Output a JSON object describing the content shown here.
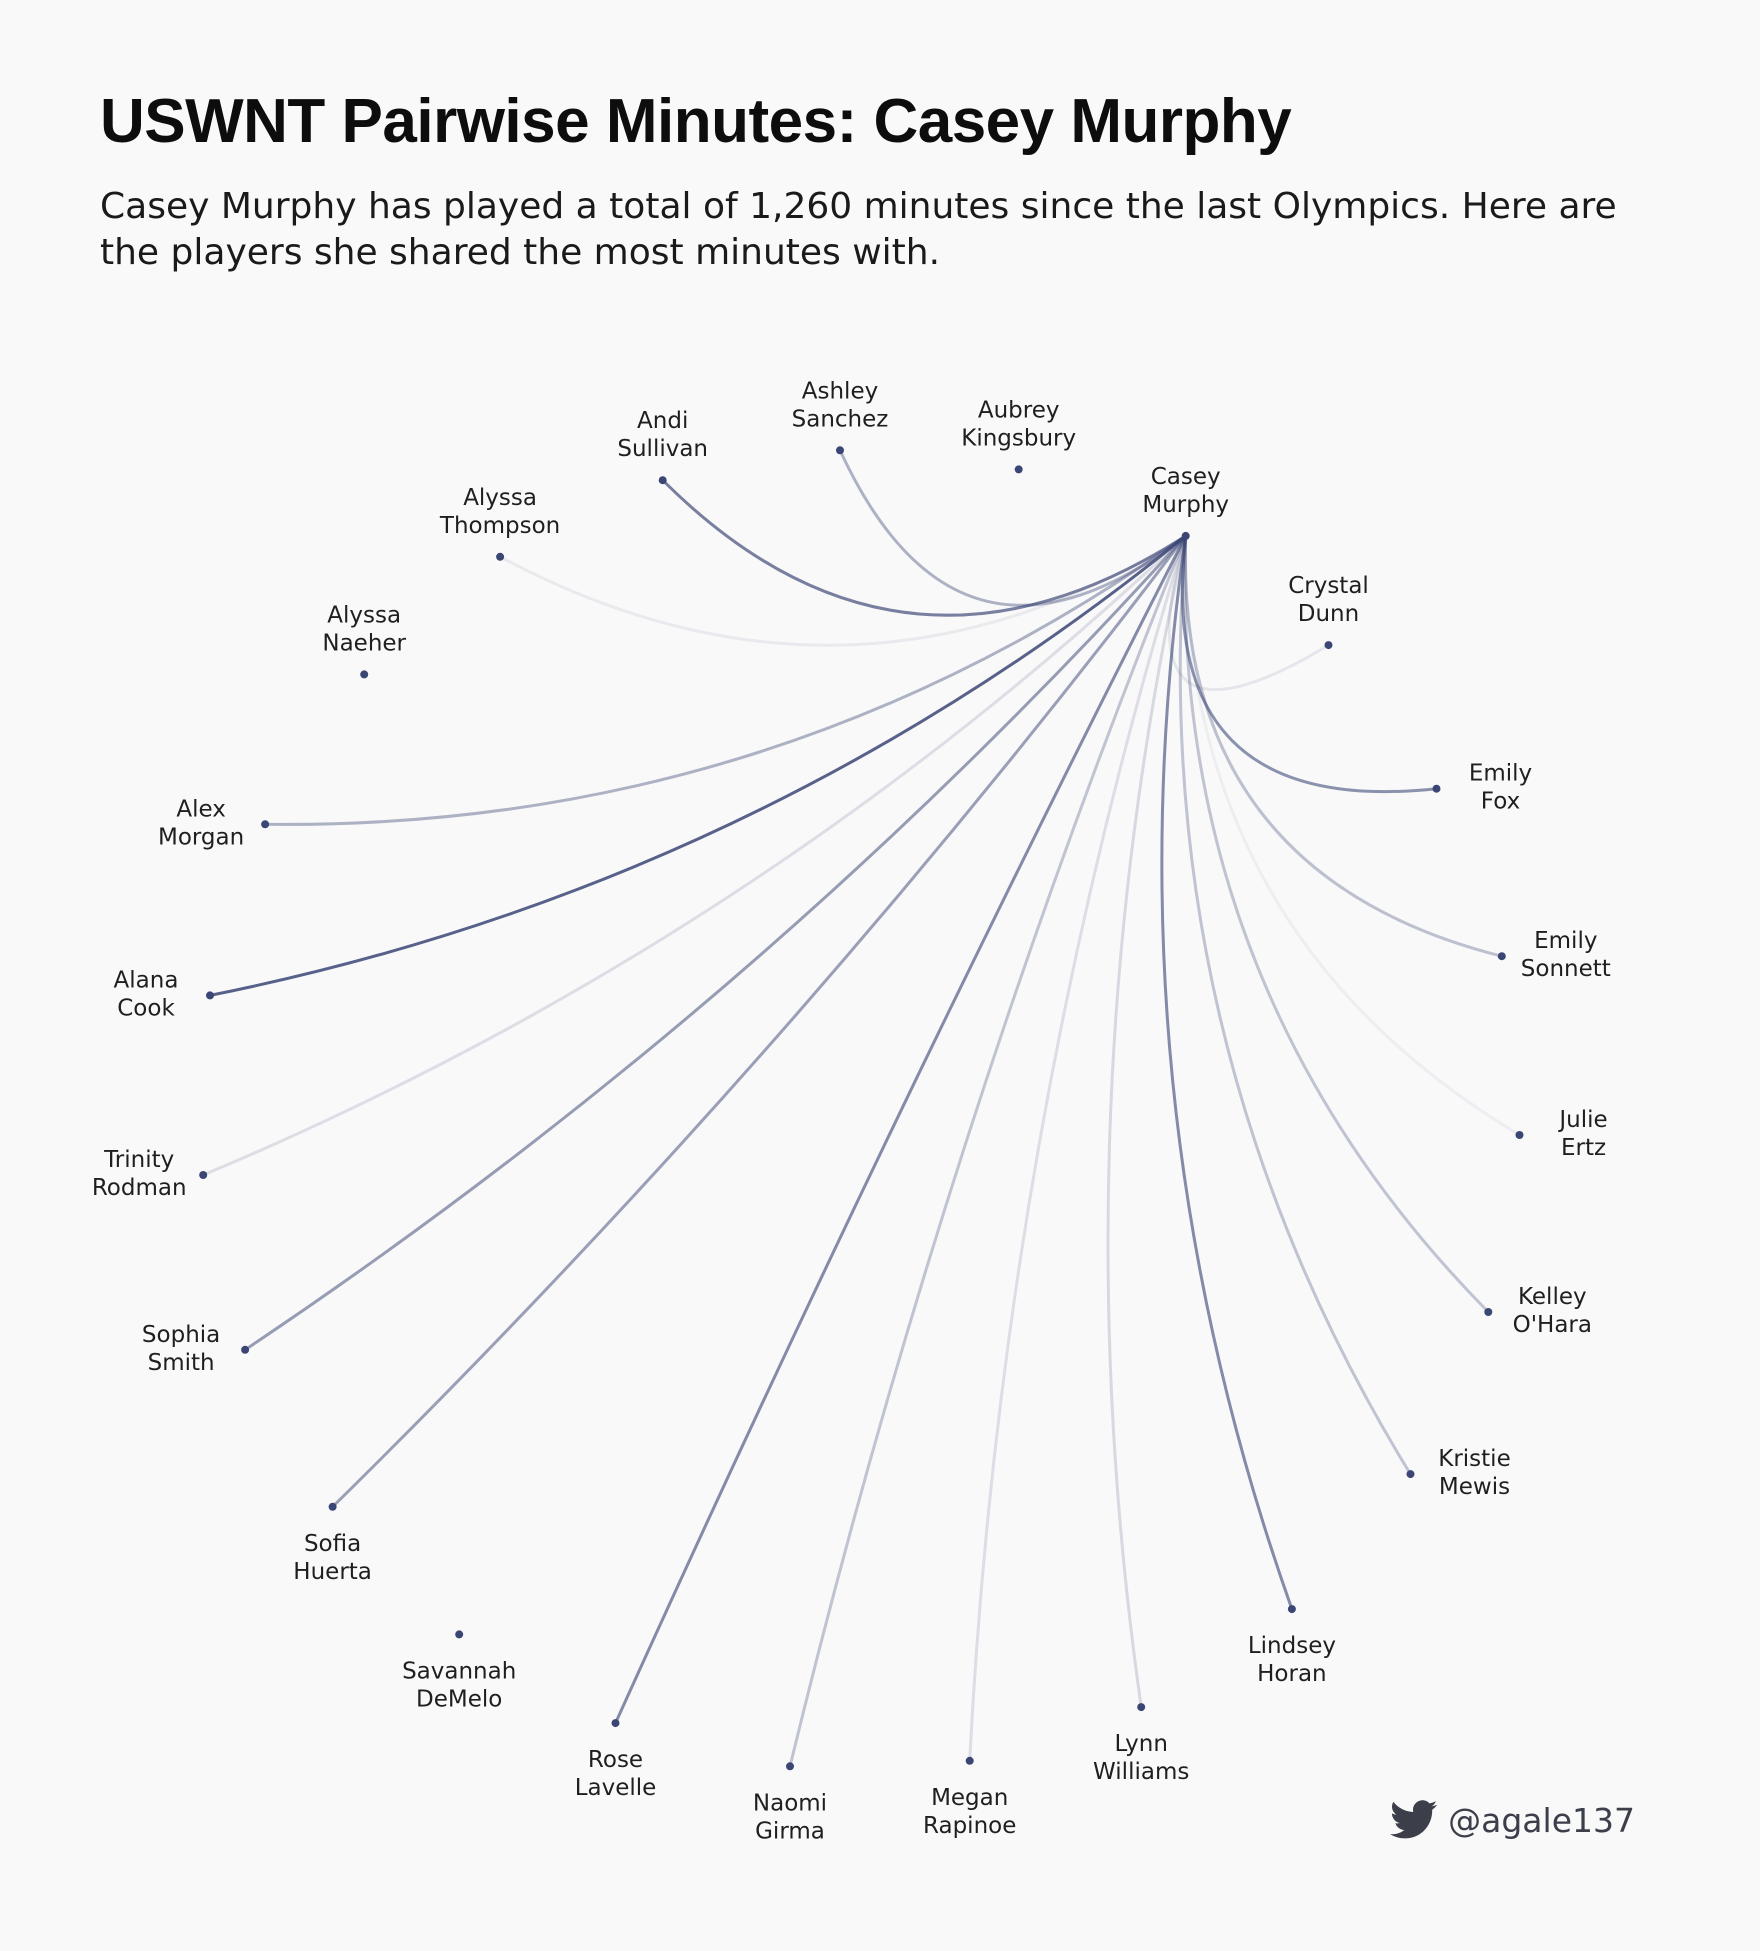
{
  "header": {
    "title": "USWNT Pairwise Minutes: Casey Murphy",
    "subtitle": "Casey Murphy has played a total of 1,260 minutes since the last Olympics. Here are the players she shared the most minutes with."
  },
  "footer": {
    "handle": "@agale137",
    "icon": "twitter-bird-icon"
  },
  "colors": {
    "edge": "#3b4675",
    "node": "#3b4675",
    "background": "#f9f9f9"
  },
  "chart_data": {
    "type": "arc-network",
    "focus_player": "Casey Murphy",
    "focus_total_minutes": 1260,
    "nodes": [
      {
        "first": "Alana",
        "last": "Cook"
      },
      {
        "first": "Alex",
        "last": "Morgan"
      },
      {
        "first": "Alyssa",
        "last": "Naeher"
      },
      {
        "first": "Alyssa",
        "last": "Thompson"
      },
      {
        "first": "Andi",
        "last": "Sullivan"
      },
      {
        "first": "Ashley",
        "last": "Sanchez"
      },
      {
        "first": "Aubrey",
        "last": "Kingsbury"
      },
      {
        "first": "Casey",
        "last": "Murphy"
      },
      {
        "first": "Crystal",
        "last": "Dunn"
      },
      {
        "first": "Emily",
        "last": "Fox"
      },
      {
        "first": "Emily",
        "last": "Sonnett"
      },
      {
        "first": "Julie",
        "last": "Ertz"
      },
      {
        "first": "Kelley",
        "last": "O'Hara"
      },
      {
        "first": "Kristie",
        "last": "Mewis"
      },
      {
        "first": "Lindsey",
        "last": "Horan"
      },
      {
        "first": "Lynn",
        "last": "Williams"
      },
      {
        "first": "Megan",
        "last": "Rapinoe"
      },
      {
        "first": "Naomi",
        "last": "Girma"
      },
      {
        "first": "Rose",
        "last": "Lavelle"
      },
      {
        "first": "Savannah",
        "last": "DeMelo"
      },
      {
        "first": "Sofia",
        "last": "Huerta"
      },
      {
        "first": "Sophia",
        "last": "Smith"
      },
      {
        "first": "Trinity",
        "last": "Rodman"
      }
    ],
    "edges": [
      {
        "player": "Alana Cook",
        "shared_strength": 0.85
      },
      {
        "player": "Alex Morgan",
        "shared_strength": 0.4
      },
      {
        "player": "Alyssa Thompson",
        "shared_strength": 0.08
      },
      {
        "player": "Andi Sullivan",
        "shared_strength": 0.68
      },
      {
        "player": "Ashley Sanchez",
        "shared_strength": 0.4
      },
      {
        "player": "Crystal Dunn",
        "shared_strength": 0.1
      },
      {
        "player": "Emily Fox",
        "shared_strength": 0.58
      },
      {
        "player": "Emily Sonnett",
        "shared_strength": 0.32
      },
      {
        "player": "Julie Ertz",
        "shared_strength": 0.05
      },
      {
        "player": "Kelley O'Hara",
        "shared_strength": 0.3
      },
      {
        "player": "Kristie Mewis",
        "shared_strength": 0.3
      },
      {
        "player": "Lindsey Horan",
        "shared_strength": 0.62
      },
      {
        "player": "Lynn Williams",
        "shared_strength": 0.18
      },
      {
        "player": "Megan Rapinoe",
        "shared_strength": 0.15
      },
      {
        "player": "Naomi Girma",
        "shared_strength": 0.3
      },
      {
        "player": "Rose Lavelle",
        "shared_strength": 0.62
      },
      {
        "player": "Sofia Huerta",
        "shared_strength": 0.5
      },
      {
        "player": "Sophia Smith",
        "shared_strength": 0.52
      },
      {
        "player": "Trinity Rodman",
        "shared_strength": 0.15
      }
    ]
  }
}
